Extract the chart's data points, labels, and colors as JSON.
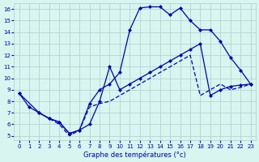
{
  "title": "Graphe des températures (°c)",
  "bg_color": "#d8f5f0",
  "grid_color": "#b0cccc",
  "line_color": "#0000bb",
  "xlim": [
    -0.5,
    23.5
  ],
  "ylim": [
    4.6,
    16.5
  ],
  "xticks": [
    0,
    1,
    2,
    3,
    4,
    5,
    6,
    7,
    8,
    9,
    10,
    11,
    12,
    13,
    14,
    15,
    16,
    17,
    18,
    19,
    20,
    21,
    22,
    23
  ],
  "yticks": [
    5,
    6,
    7,
    8,
    9,
    10,
    11,
    12,
    13,
    14,
    15,
    16
  ],
  "curve1_x": [
    0,
    1,
    2,
    3,
    4,
    5,
    6,
    7,
    8,
    9,
    10,
    11,
    12,
    13,
    14,
    15,
    16,
    17,
    18,
    19,
    20,
    21,
    22,
    23
  ],
  "curve1_y": [
    8.7,
    7.5,
    7.0,
    6.5,
    6.2,
    5.2,
    5.5,
    7.8,
    9.0,
    9.5,
    10.5,
    14.2,
    16.1,
    16.2,
    16.2,
    15.5,
    16.1,
    15.0,
    14.2,
    14.2,
    13.2,
    11.8,
    10.7,
    9.5
  ],
  "curve2_x": [
    0,
    2,
    3,
    4,
    5,
    6,
    7,
    8,
    9,
    10,
    11,
    12,
    13,
    14,
    15,
    16,
    17,
    18,
    19,
    20,
    21,
    22,
    23
  ],
  "curve2_y": [
    8.7,
    7.0,
    6.5,
    6.2,
    5.2,
    5.5,
    6.0,
    8.0,
    11.0,
    9.0,
    9.5,
    10.0,
    10.5,
    11.0,
    11.5,
    12.0,
    12.5,
    13.0,
    8.5,
    9.0,
    9.3,
    9.4,
    9.5
  ],
  "curve3_x": [
    2,
    3,
    4,
    5,
    6,
    7,
    8,
    9,
    10,
    11,
    12,
    13,
    14,
    15,
    16,
    17,
    18,
    19,
    20,
    21,
    22,
    23
  ],
  "curve3_y": [
    7.0,
    6.5,
    6.0,
    5.0,
    5.5,
    7.5,
    7.8,
    8.0,
    8.5,
    9.0,
    9.5,
    10.0,
    10.5,
    11.0,
    11.5,
    12.0,
    8.5,
    9.0,
    9.5,
    9.0,
    9.2,
    9.5
  ]
}
